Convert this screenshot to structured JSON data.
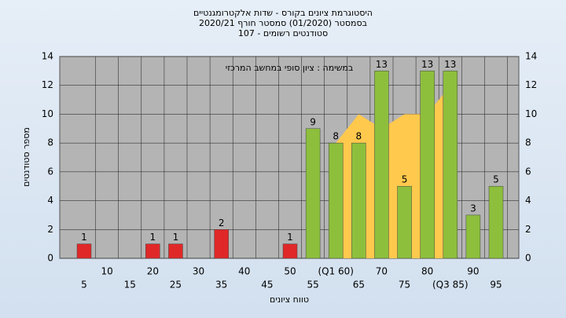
{
  "chart_data": {
    "type": "bar",
    "title": [
      "היסטוגרמת ציונים בקורס - שדות אלקטרומגנטיים",
      "בסמסטר  (01/2020)  סמסטר חורף  2020/21",
      "סטודנטים רשומים - 107"
    ],
    "annotation": "במשימה : ציון סופי במחשב המרכזי",
    "x_label": "טווח ציונים",
    "y_label": "מספר סטודנטים",
    "categories": [
      "5",
      "10",
      "15",
      "20",
      "25",
      "30",
      "35",
      "40",
      "45",
      "50",
      "55",
      "(Q1 60)",
      "65",
      "70",
      "75",
      "80",
      "(Q3 85)",
      "90",
      "95"
    ],
    "values": [
      1,
      0,
      0,
      1,
      1,
      0,
      2,
      0,
      0,
      1,
      9,
      8,
      8,
      13,
      5,
      13,
      13,
      3,
      5
    ],
    "colors": [
      "#e02828",
      "#e02828",
      "#e02828",
      "#e02828",
      "#e02828",
      "#e02828",
      "#e02828",
      "#e02828",
      "#e02828",
      "#e02828",
      "#8dbf3c",
      "#8dbf3c",
      "#8dbf3c",
      "#8dbf3c",
      "#8dbf3c",
      "#8dbf3c",
      "#8dbf3c",
      "#8dbf3c",
      "#8dbf3c"
    ],
    "area": {
      "color": "#ffc94d",
      "values": [
        null,
        null,
        null,
        null,
        null,
        null,
        null,
        null,
        null,
        null,
        null,
        8,
        10,
        9,
        10,
        10,
        12,
        null,
        null
      ]
    },
    "ylim": [
      0,
      14
    ],
    "yticks": [
      0,
      2,
      4,
      6,
      8,
      10,
      12,
      14
    ],
    "grid": true
  }
}
